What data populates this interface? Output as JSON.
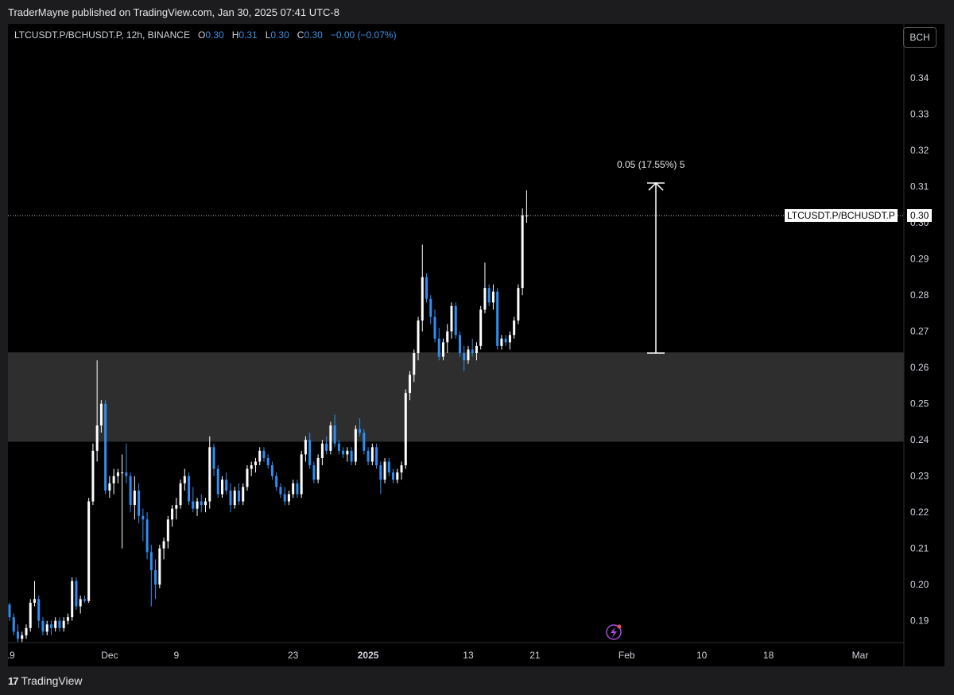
{
  "header": {
    "published": "TraderMayne published on TradingView.com, Jan 30, 2025 07:41 UTC-8"
  },
  "legend": {
    "symbol": "LTCUSDT.P/BCHUSDT.P, 12h, BINANCE",
    "o_label": "O",
    "o": "0.30",
    "h_label": "H",
    "h": "0.31",
    "l_label": "L",
    "l": "0.30",
    "c_label": "C",
    "c": "0.30",
    "change": "−0.00 (−0.07%)"
  },
  "compare_button": "BCH",
  "last_price": {
    "symbol": "LTCUSDT.P/BCHUSDT.P",
    "value": "0.30"
  },
  "measure": {
    "label": "0.05 (17.55%) 5",
    "from": 0.264,
    "to": 0.311
  },
  "zone": {
    "low": 0.2395,
    "high": 0.2642,
    "color": "#2e2e2e"
  },
  "footer": {
    "brand": "TradingView"
  },
  "colors": {
    "up": "#ffffff",
    "down": "#2f8ef3",
    "background": "#000000",
    "accent": "#3d8fe0"
  },
  "chart_data": {
    "type": "candlestick",
    "title": "LTCUSDT.P/BCHUSDT.P, 12h, BINANCE",
    "interval": "12h",
    "y_ticks": [
      "0.19",
      "0.20",
      "0.21",
      "0.22",
      "0.23",
      "0.24",
      "0.25",
      "0.26",
      "0.27",
      "0.28",
      "0.29",
      "0.30",
      "0.31",
      "0.32",
      "0.33",
      "0.34"
    ],
    "ylim": [
      0.184,
      0.355
    ],
    "x_ticks": [
      {
        "label": "19",
        "date": "2024-11-19"
      },
      {
        "label": "Dec",
        "date": "2024-12-01"
      },
      {
        "label": "9",
        "date": "2024-12-09"
      },
      {
        "label": "23",
        "date": "2024-12-23"
      },
      {
        "label": "2025",
        "date": "2025-01-01"
      },
      {
        "label": "13",
        "date": "2025-01-13"
      },
      {
        "label": "21",
        "date": "2025-01-21"
      },
      {
        "label": "Feb",
        "date": "2025-02-01"
      },
      {
        "label": "10",
        "date": "2025-02-10"
      },
      {
        "label": "18",
        "date": "2025-02-18"
      },
      {
        "label": "Mar",
        "date": "2025-03-01"
      }
    ],
    "first_candle_date": "2024-11-19",
    "candles": [
      [
        0.1945,
        0.195,
        0.19,
        0.191
      ],
      [
        0.191,
        0.192,
        0.186,
        0.187
      ],
      [
        0.187,
        0.189,
        0.184,
        0.185
      ],
      [
        0.185,
        0.187,
        0.184,
        0.186
      ],
      [
        0.186,
        0.189,
        0.185,
        0.188
      ],
      [
        0.188,
        0.196,
        0.187,
        0.195
      ],
      [
        0.195,
        0.201,
        0.194,
        0.196
      ],
      [
        0.196,
        0.197,
        0.188,
        0.19
      ],
      [
        0.19,
        0.191,
        0.186,
        0.187
      ],
      [
        0.187,
        0.19,
        0.186,
        0.189
      ],
      [
        0.189,
        0.19,
        0.186,
        0.188
      ],
      [
        0.188,
        0.191,
        0.187,
        0.19
      ],
      [
        0.19,
        0.191,
        0.187,
        0.188
      ],
      [
        0.188,
        0.191,
        0.187,
        0.19
      ],
      [
        0.19,
        0.192,
        0.189,
        0.191
      ],
      [
        0.191,
        0.202,
        0.19,
        0.201
      ],
      [
        0.201,
        0.202,
        0.193,
        0.194
      ],
      [
        0.194,
        0.197,
        0.192,
        0.196
      ],
      [
        0.196,
        0.197,
        0.195,
        0.1955
      ],
      [
        0.1955,
        0.224,
        0.195,
        0.223
      ],
      [
        0.223,
        0.239,
        0.222,
        0.237
      ],
      [
        0.237,
        0.262,
        0.234,
        0.244
      ],
      [
        0.244,
        0.251,
        0.242,
        0.25
      ],
      [
        0.25,
        0.251,
        0.225,
        0.226
      ],
      [
        0.226,
        0.23,
        0.224,
        0.228
      ],
      [
        0.228,
        0.232,
        0.225,
        0.23
      ],
      [
        0.23,
        0.232,
        0.228,
        0.231
      ],
      [
        0.231,
        0.236,
        0.21,
        0.231
      ],
      [
        0.231,
        0.239,
        0.228,
        0.23
      ],
      [
        0.23,
        0.231,
        0.22,
        0.222
      ],
      [
        0.222,
        0.23,
        0.218,
        0.226
      ],
      [
        0.226,
        0.228,
        0.217,
        0.219
      ],
      [
        0.219,
        0.221,
        0.212,
        0.218
      ],
      [
        0.218,
        0.22,
        0.207,
        0.209
      ],
      [
        0.209,
        0.211,
        0.194,
        0.204
      ],
      [
        0.204,
        0.207,
        0.196,
        0.2
      ],
      [
        0.2,
        0.211,
        0.199,
        0.21
      ],
      [
        0.21,
        0.213,
        0.207,
        0.212
      ],
      [
        0.212,
        0.219,
        0.21,
        0.218
      ],
      [
        0.218,
        0.222,
        0.216,
        0.221
      ],
      [
        0.221,
        0.224,
        0.218,
        0.222
      ],
      [
        0.222,
        0.229,
        0.221,
        0.228
      ],
      [
        0.228,
        0.232,
        0.226,
        0.23
      ],
      [
        0.23,
        0.231,
        0.222,
        0.223
      ],
      [
        0.223,
        0.227,
        0.22,
        0.221
      ],
      [
        0.221,
        0.224,
        0.219,
        0.223
      ],
      [
        0.223,
        0.225,
        0.22,
        0.222
      ],
      [
        0.222,
        0.224,
        0.22,
        0.223
      ],
      [
        0.223,
        0.241,
        0.221,
        0.238
      ],
      [
        0.238,
        0.239,
        0.23,
        0.232
      ],
      [
        0.232,
        0.233,
        0.224,
        0.225
      ],
      [
        0.225,
        0.23,
        0.224,
        0.229
      ],
      [
        0.229,
        0.231,
        0.225,
        0.226
      ],
      [
        0.226,
        0.228,
        0.22,
        0.222
      ],
      [
        0.222,
        0.227,
        0.221,
        0.226
      ],
      [
        0.226,
        0.228,
        0.222,
        0.223
      ],
      [
        0.223,
        0.228,
        0.222,
        0.227
      ],
      [
        0.227,
        0.233,
        0.226,
        0.232
      ],
      [
        0.232,
        0.234,
        0.23,
        0.233
      ],
      [
        0.233,
        0.235,
        0.231,
        0.234
      ],
      [
        0.234,
        0.238,
        0.233,
        0.237
      ],
      [
        0.237,
        0.238,
        0.234,
        0.235
      ],
      [
        0.235,
        0.236,
        0.232,
        0.233
      ],
      [
        0.233,
        0.234,
        0.229,
        0.23
      ],
      [
        0.23,
        0.231,
        0.226,
        0.227
      ],
      [
        0.227,
        0.228,
        0.224,
        0.225
      ],
      [
        0.225,
        0.227,
        0.222,
        0.223
      ],
      [
        0.223,
        0.226,
        0.222,
        0.225
      ],
      [
        0.225,
        0.229,
        0.224,
        0.228
      ],
      [
        0.228,
        0.229,
        0.224,
        0.225
      ],
      [
        0.225,
        0.237,
        0.224,
        0.236
      ],
      [
        0.236,
        0.241,
        0.234,
        0.24
      ],
      [
        0.24,
        0.242,
        0.232,
        0.233
      ],
      [
        0.233,
        0.234,
        0.228,
        0.229
      ],
      [
        0.229,
        0.236,
        0.228,
        0.235
      ],
      [
        0.235,
        0.24,
        0.233,
        0.239
      ],
      [
        0.239,
        0.241,
        0.236,
        0.237
      ],
      [
        0.237,
        0.245,
        0.236,
        0.244
      ],
      [
        0.244,
        0.247,
        0.238,
        0.239
      ],
      [
        0.239,
        0.24,
        0.236,
        0.237
      ],
      [
        0.237,
        0.238,
        0.235,
        0.236
      ],
      [
        0.236,
        0.238,
        0.234,
        0.237
      ],
      [
        0.237,
        0.238,
        0.233,
        0.234
      ],
      [
        0.234,
        0.244,
        0.233,
        0.243
      ],
      [
        0.243,
        0.246,
        0.241,
        0.242
      ],
      [
        0.242,
        0.243,
        0.236,
        0.237
      ],
      [
        0.237,
        0.238,
        0.233,
        0.234
      ],
      [
        0.234,
        0.239,
        0.233,
        0.238
      ],
      [
        0.238,
        0.239,
        0.232,
        0.233
      ],
      [
        0.233,
        0.234,
        0.225,
        0.229
      ],
      [
        0.229,
        0.235,
        0.228,
        0.234
      ],
      [
        0.234,
        0.235,
        0.23,
        0.231
      ],
      [
        0.231,
        0.232,
        0.228,
        0.229
      ],
      [
        0.229,
        0.232,
        0.228,
        0.231
      ],
      [
        0.231,
        0.234,
        0.229,
        0.233
      ],
      [
        0.233,
        0.254,
        0.232,
        0.253
      ],
      [
        0.253,
        0.259,
        0.251,
        0.258
      ],
      [
        0.258,
        0.265,
        0.256,
        0.264
      ],
      [
        0.264,
        0.274,
        0.262,
        0.273
      ],
      [
        0.273,
        0.294,
        0.27,
        0.285
      ],
      [
        0.285,
        0.286,
        0.278,
        0.279
      ],
      [
        0.279,
        0.28,
        0.272,
        0.274
      ],
      [
        0.274,
        0.276,
        0.267,
        0.268
      ],
      [
        0.268,
        0.271,
        0.262,
        0.263
      ],
      [
        0.263,
        0.268,
        0.262,
        0.267
      ],
      [
        0.267,
        0.272,
        0.264,
        0.27
      ],
      [
        0.27,
        0.278,
        0.268,
        0.277
      ],
      [
        0.277,
        0.278,
        0.268,
        0.269
      ],
      [
        0.269,
        0.27,
        0.263,
        0.264
      ],
      [
        0.264,
        0.266,
        0.259,
        0.262
      ],
      [
        0.262,
        0.266,
        0.261,
        0.265
      ],
      [
        0.265,
        0.268,
        0.263,
        0.264
      ],
      [
        0.264,
        0.267,
        0.262,
        0.266
      ],
      [
        0.266,
        0.277,
        0.265,
        0.276
      ],
      [
        0.276,
        0.289,
        0.275,
        0.282
      ],
      [
        0.282,
        0.283,
        0.277,
        0.278
      ],
      [
        0.278,
        0.283,
        0.276,
        0.281
      ],
      [
        0.281,
        0.282,
        0.265,
        0.266
      ],
      [
        0.266,
        0.269,
        0.265,
        0.268
      ],
      [
        0.268,
        0.269,
        0.266,
        0.267
      ],
      [
        0.267,
        0.27,
        0.265,
        0.269
      ],
      [
        0.269,
        0.274,
        0.268,
        0.273
      ],
      [
        0.273,
        0.283,
        0.272,
        0.282
      ],
      [
        0.282,
        0.304,
        0.28,
        0.302
      ],
      [
        0.302,
        0.309,
        0.3,
        0.302
      ]
    ]
  }
}
